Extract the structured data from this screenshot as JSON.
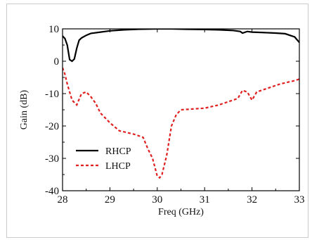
{
  "chart_data": {
    "type": "line",
    "title": "",
    "xlabel": "Freq (GHz)",
    "ylabel": "Gain (dB)",
    "xlim": [
      28,
      33
    ],
    "ylim": [
      -40,
      10
    ],
    "xticks": [
      28,
      29,
      30,
      31,
      32,
      33
    ],
    "yticks": [
      10,
      0,
      -10,
      -20,
      -30,
      -40
    ],
    "x_tick_labels": [
      "28",
      "29",
      "30",
      "31",
      "32",
      "33"
    ],
    "y_tick_labels": [
      "10",
      "0",
      "-10",
      "-20",
      "-30",
      "-40"
    ],
    "grid": false,
    "legend_position": "bottom-left",
    "series": [
      {
        "name": "RHCP",
        "color": "#000000",
        "style": "solid",
        "x": [
          28.0,
          28.05,
          28.1,
          28.15,
          28.2,
          28.25,
          28.3,
          28.35,
          28.4,
          28.5,
          28.6,
          28.8,
          29.0,
          29.3,
          29.6,
          30.0,
          30.3,
          30.6,
          31.0,
          31.3,
          31.6,
          31.75,
          31.8,
          31.9,
          32.0,
          32.2,
          32.5,
          32.7,
          32.9,
          33.0
        ],
        "y": [
          7.8,
          7.0,
          5.0,
          0.5,
          0.0,
          0.7,
          4.0,
          6.5,
          7.2,
          8.0,
          8.6,
          9.0,
          9.4,
          9.7,
          9.9,
          10.0,
          10.0,
          9.9,
          9.8,
          9.7,
          9.5,
          9.2,
          8.7,
          9.2,
          9.0,
          8.9,
          8.7,
          8.5,
          7.5,
          5.8
        ]
      },
      {
        "name": "LHCP",
        "color": "#e02020",
        "style": "dashed",
        "x": [
          28.0,
          28.05,
          28.1,
          28.2,
          28.3,
          28.4,
          28.5,
          28.6,
          28.7,
          28.8,
          29.0,
          29.2,
          29.5,
          29.7,
          29.8,
          29.9,
          30.0,
          30.05,
          30.1,
          30.2,
          30.3,
          30.4,
          30.5,
          31.0,
          31.3,
          31.7,
          31.8,
          31.9,
          32.0,
          32.1,
          32.3,
          32.6,
          32.9,
          33.0
        ],
        "y": [
          -2.0,
          -4.0,
          -7.0,
          -12.0,
          -13.5,
          -10.0,
          -9.5,
          -11.0,
          -13.0,
          -16.0,
          -19.0,
          -21.5,
          -22.5,
          -23.5,
          -27.0,
          -30.0,
          -35.5,
          -36.0,
          -35.0,
          -29.0,
          -20.0,
          -16.5,
          -15.0,
          -14.5,
          -13.5,
          -11.5,
          -9.0,
          -9.5,
          -12.0,
          -9.5,
          -8.5,
          -7.0,
          -6.0,
          -5.5
        ]
      }
    ]
  }
}
